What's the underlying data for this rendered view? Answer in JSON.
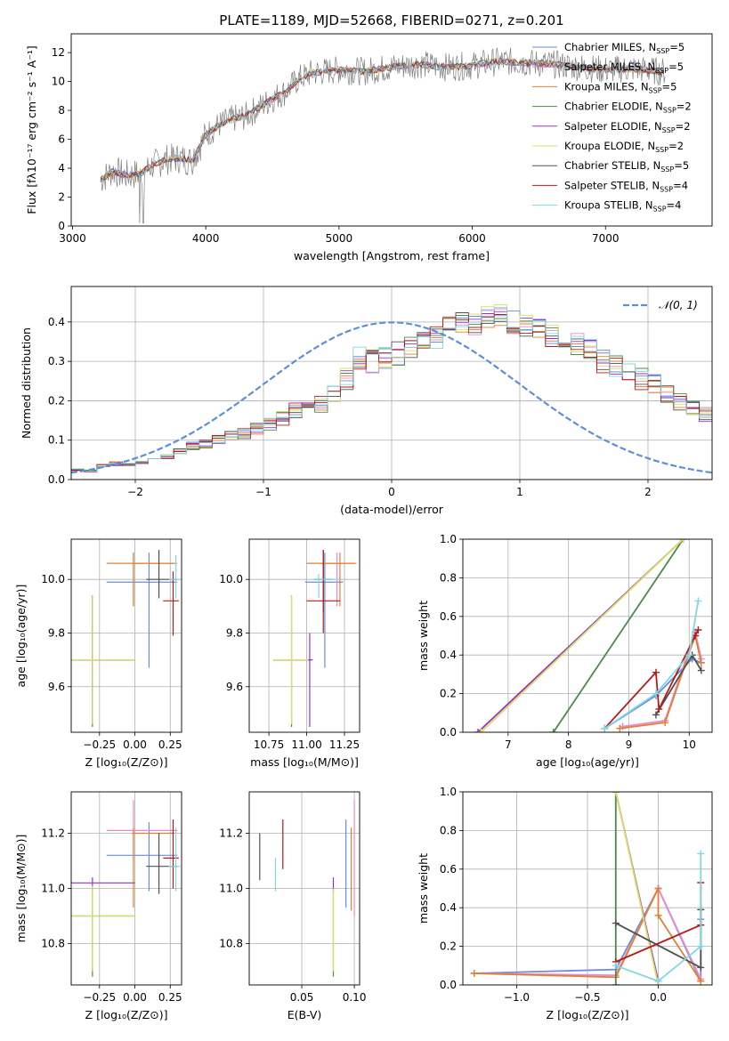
{
  "title": "PLATE=1189, MJD=52668, FIBERID=0271, z=0.201",
  "colors": {
    "Chabrier MILES": "#6a8be0",
    "Salpeter MILES": "#ee88cc",
    "Kroupa MILES": "#e08030",
    "Chabrier ELODIE": "#4a8a4a",
    "Salpeter ELODIE": "#9a30c8",
    "Kroupa ELODIE": "#d8e060",
    "Chabrier STELIB": "#505050",
    "Salpeter STELIB": "#b81818",
    "Kroupa STELIB": "#80d8e0",
    "gaussian": "#5b8fd8"
  },
  "chart_data": [
    {
      "id": "spectrum",
      "type": "line",
      "xlabel": "wavelength [Angstrom, rest frame]",
      "ylabel": "Flux [fλ10⁻¹⁷ erg cm⁻² s⁻¹ A⁻¹]",
      "xlim": [
        2990,
        7800
      ],
      "ylim": [
        0,
        13.3
      ],
      "xticks": [
        3000,
        4000,
        5000,
        6000,
        7000
      ],
      "yticks": [
        0,
        2,
        4,
        6,
        8,
        10,
        12
      ],
      "x": [
        3210,
        3300,
        3400,
        3500,
        3600,
        3700,
        3800,
        3900,
        4000,
        4100,
        4200,
        4300,
        4400,
        4500,
        4600,
        4700,
        4800,
        4900,
        5000,
        5200,
        5400,
        5600,
        5800,
        6000,
        6200,
        6400,
        6600,
        6800,
        7000,
        7200,
        7400
      ],
      "y": [
        3.2,
        3.8,
        3.5,
        3.6,
        4.2,
        4.6,
        4.7,
        4.5,
        6.3,
        7.0,
        7.4,
        7.6,
        8.2,
        8.8,
        9.3,
        10.2,
        10.6,
        10.7,
        10.8,
        10.7,
        11.0,
        11.2,
        11.0,
        11.1,
        11.4,
        11.3,
        11.2,
        11.0,
        10.8,
        10.9,
        10.7
      ],
      "legend": [
        {
          "label": "Chabrier MILES, N",
          "sub": "SSP",
          "tail": "=5"
        },
        {
          "label": "Salpeter MILES, N",
          "sub": "SSP",
          "tail": "=5"
        },
        {
          "label": "Kroupa MILES, N",
          "sub": "SSP",
          "tail": "=5"
        },
        {
          "label": "Chabrier ELODIE, N",
          "sub": "SSP",
          "tail": "=2"
        },
        {
          "label": "Salpeter ELODIE, N",
          "sub": "SSP",
          "tail": "=2"
        },
        {
          "label": "Kroupa ELODIE, N",
          "sub": "SSP",
          "tail": "=2"
        },
        {
          "label": "Chabrier STELIB, N",
          "sub": "SSP",
          "tail": "=5"
        },
        {
          "label": "Salpeter STELIB, N",
          "sub": "SSP",
          "tail": "=4"
        },
        {
          "label": "Kroupa STELIB, N",
          "sub": "SSP",
          "tail": "=4"
        }
      ]
    },
    {
      "id": "residuals",
      "type": "histogram",
      "xlabel": "(data-model)/error",
      "ylabel": "Normed distribution",
      "xlim": [
        -2.5,
        2.5
      ],
      "ylim": [
        0,
        0.49
      ],
      "xticks": [
        -2,
        -1,
        0,
        1,
        2
      ],
      "yticks": [
        0.0,
        0.1,
        0.2,
        0.3,
        0.4
      ],
      "bin_width": 0.1,
      "bin_start": -2.5,
      "values": [
        0.025,
        0.022,
        0.035,
        0.04,
        0.038,
        0.045,
        0.05,
        0.058,
        0.072,
        0.085,
        0.09,
        0.1,
        0.11,
        0.118,
        0.128,
        0.14,
        0.155,
        0.175,
        0.185,
        0.19,
        0.22,
        0.255,
        0.31,
        0.3,
        0.31,
        0.32,
        0.335,
        0.345,
        0.36,
        0.385,
        0.4,
        0.395,
        0.41,
        0.415,
        0.4,
        0.39,
        0.38,
        0.365,
        0.355,
        0.345,
        0.33,
        0.3,
        0.29,
        0.28,
        0.255,
        0.24,
        0.22,
        0.2,
        0.185,
        0.165,
        0.155,
        0.14,
        0.125,
        0.11,
        0.1,
        0.092,
        0.08,
        0.068,
        0.06,
        0.05,
        0.045,
        0.04,
        0.035,
        0.03,
        0.028,
        0.025,
        0.022,
        0.02,
        0.018,
        0.02,
        0.022,
        0.02,
        0.018,
        0.02,
        0.022,
        0.02,
        0.018,
        0.02,
        0.02,
        0.02
      ],
      "legend_label": "𝒩(0, 1)"
    },
    {
      "id": "age_vs_Z",
      "type": "errorbar",
      "xlabel": "Z [log₁₀(Z/Z⊙)]",
      "ylabel": "age  [log₁₀(age/yr)]",
      "xlim": [
        -0.45,
        0.33
      ],
      "ylim": [
        9.43,
        10.15
      ],
      "xticks": [
        -0.25,
        0.0,
        0.25
      ],
      "xticklabels": [
        "−0.25",
        "0.00",
        "0.25"
      ],
      "yticks": [
        9.6,
        9.8,
        10.0
      ],
      "points": [
        {
          "m": "Chabrier MILES",
          "x": 0.1,
          "y": 9.99,
          "xe": [
            -0.2,
            0.3
          ],
          "ye": [
            9.67,
            10.1
          ]
        },
        {
          "m": "Salpeter MILES",
          "x": -0.01,
          "y": 10.06,
          "xe": [
            -0.02,
            0.3
          ],
          "ye": [
            9.9,
            10.1
          ]
        },
        {
          "m": "Kroupa MILES",
          "x": -0.01,
          "y": 10.06,
          "xe": [
            -0.2,
            0.28
          ],
          "ye": [
            9.9,
            10.1
          ]
        },
        {
          "m": "Chabrier ELODIE",
          "x": -0.3,
          "y": 9.7,
          "xe": [
            -0.45,
            0.0
          ],
          "ye": [
            9.45,
            9.94
          ]
        },
        {
          "m": "Salpeter ELODIE",
          "x": -0.3,
          "y": 9.7,
          "xe": [
            -0.45,
            0.0
          ],
          "ye": [
            9.46,
            9.94
          ]
        },
        {
          "m": "Kroupa ELODIE",
          "x": -0.3,
          "y": 9.7,
          "xe": [
            -0.45,
            0.0
          ],
          "ye": [
            9.46,
            9.94
          ]
        },
        {
          "m": "Chabrier STELIB",
          "x": 0.17,
          "y": 10.0,
          "xe": [
            0.08,
            0.3
          ],
          "ye": [
            9.93,
            10.11
          ]
        },
        {
          "m": "Salpeter STELIB",
          "x": 0.27,
          "y": 9.92,
          "xe": [
            0.2,
            0.31
          ],
          "ye": [
            9.79,
            10.03
          ]
        },
        {
          "m": "Kroupa STELIB",
          "x": 0.29,
          "y": 10.0,
          "xe": [
            0.24,
            0.32
          ],
          "ye": [
            9.93,
            10.09
          ]
        }
      ]
    },
    {
      "id": "age_vs_mass",
      "type": "errorbar",
      "xlabel": "mass [log₁₀(M/M⊙)]",
      "ylabel": "",
      "xlim": [
        10.62,
        11.35
      ],
      "ylim": [
        9.43,
        10.15
      ],
      "xticks": [
        10.75,
        11.0,
        11.25
      ],
      "xticklabels": [
        "10.75",
        "11.00",
        "11.25"
      ],
      "yticks": [
        9.6,
        9.8,
        10.0
      ],
      "points": [
        {
          "m": "Chabrier MILES",
          "x": 11.12,
          "y": 9.99,
          "xe": [
            10.99,
            11.24
          ],
          "ye": [
            9.67,
            10.1
          ]
        },
        {
          "m": "Salpeter MILES",
          "x": 11.2,
          "y": 10.06,
          "xe": [
            11.1,
            11.33
          ],
          "ye": [
            9.9,
            10.1
          ]
        },
        {
          "m": "Kroupa MILES",
          "x": 11.22,
          "y": 10.06,
          "xe": [
            11.0,
            11.32
          ],
          "ye": [
            9.9,
            10.1
          ]
        },
        {
          "m": "Chabrier ELODIE",
          "x": 10.9,
          "y": 9.7,
          "xe": [
            10.78,
            11.01
          ],
          "ye": [
            9.45,
            9.94
          ]
        },
        {
          "m": "Salpeter ELODIE",
          "x": 11.02,
          "y": 9.7,
          "xe": [
            10.78,
            11.04
          ],
          "ye": [
            9.45,
            9.8
          ]
        },
        {
          "m": "Kroupa ELODIE",
          "x": 10.9,
          "y": 9.7,
          "xe": [
            10.78,
            11.01
          ],
          "ye": [
            9.46,
            9.94
          ]
        },
        {
          "m": "Chabrier STELIB",
          "x": 11.11,
          "y": 10.0,
          "xe": [
            11.05,
            11.17
          ],
          "ye": [
            9.88,
            10.11
          ]
        },
        {
          "m": "Salpeter STELIB",
          "x": 11.11,
          "y": 9.92,
          "xe": [
            11.0,
            11.22
          ],
          "ye": [
            9.8,
            10.11
          ]
        },
        {
          "m": "Kroupa STELIB",
          "x": 11.08,
          "y": 10.0,
          "xe": [
            11.04,
            11.22
          ],
          "ye": [
            9.93,
            10.02
          ]
        }
      ]
    },
    {
      "id": "weight_vs_age",
      "type": "line",
      "xlabel": "age  [log₁₀(age/yr)]",
      "ylabel": "mass weight",
      "xlim": [
        6.25,
        10.38
      ],
      "ylim": [
        0,
        1.0
      ],
      "xticks": [
        7,
        8,
        9,
        10
      ],
      "yticks": [
        0.0,
        0.2,
        0.4,
        0.6,
        0.8,
        1.0
      ],
      "series": [
        {
          "m": "Chabrier MILES",
          "x": [
            8.6,
            9.45,
            10.05,
            10.2
          ],
          "y": [
            0.02,
            0.19,
            0.38,
            0.36
          ]
        },
        {
          "m": "Salpeter MILES",
          "x": [
            8.9,
            9.6,
            10.1,
            10.2
          ],
          "y": [
            0.03,
            0.06,
            0.52,
            0.38
          ]
        },
        {
          "m": "Kroupa MILES",
          "x": [
            8.85,
            9.6,
            10.1,
            10.2
          ],
          "y": [
            0.02,
            0.05,
            0.5,
            0.36
          ]
        },
        {
          "m": "Chabrier ELODIE",
          "x": [
            7.75,
            9.9
          ],
          "y": [
            0.0,
            1.0
          ]
        },
        {
          "m": "Salpeter ELODIE",
          "x": [
            6.5,
            9.9
          ],
          "y": [
            0.0,
            1.0
          ]
        },
        {
          "m": "Kroupa ELODIE",
          "x": [
            6.55,
            9.9
          ],
          "y": [
            0.0,
            1.0
          ]
        },
        {
          "m": "Chabrier STELIB",
          "x": [
            9.45,
            10.05,
            10.2
          ],
          "y": [
            0.09,
            0.4,
            0.32
          ]
        },
        {
          "m": "Salpeter STELIB",
          "x": [
            8.6,
            9.45,
            9.5,
            10.1,
            10.15
          ],
          "y": [
            0.02,
            0.31,
            0.12,
            0.5,
            0.53
          ]
        },
        {
          "m": "Kroupa STELIB",
          "x": [
            8.6,
            9.45,
            10.0,
            10.15
          ],
          "y": [
            0.02,
            0.2,
            0.4,
            0.68
          ]
        }
      ]
    },
    {
      "id": "mass_vs_Z",
      "type": "errorbar",
      "xlabel": "Z [log₁₀(Z/Z⊙)]",
      "ylabel": "mass [log₁₀(M/M⊙)]",
      "xlim": [
        -0.45,
        0.33
      ],
      "ylim": [
        10.65,
        11.35
      ],
      "xticks": [
        -0.25,
        0.0,
        0.25
      ],
      "xticklabels": [
        "−0.25",
        "0.00",
        "0.25"
      ],
      "yticks": [
        10.8,
        11.0,
        11.2
      ],
      "points": [
        {
          "m": "Chabrier MILES",
          "x": 0.1,
          "y": 11.12,
          "xe": [
            -0.2,
            0.3
          ],
          "ye": [
            10.99,
            11.24
          ]
        },
        {
          "m": "Salpeter MILES",
          "x": -0.01,
          "y": 11.21,
          "xe": [
            -0.2,
            0.3
          ],
          "ye": [
            11.1,
            11.32
          ]
        },
        {
          "m": "Kroupa MILES",
          "x": -0.01,
          "y": 11.2,
          "xe": [
            -0.02,
            0.28
          ],
          "ye": [
            10.93,
            11.22
          ]
        },
        {
          "m": "Chabrier ELODIE",
          "x": -0.3,
          "y": 10.9,
          "xe": [
            -0.45,
            0.0
          ],
          "ye": [
            10.68,
            11.01
          ]
        },
        {
          "m": "Salpeter ELODIE",
          "x": -0.3,
          "y": 11.02,
          "xe": [
            -0.45,
            0.0
          ],
          "ye": [
            11.0,
            11.04
          ]
        },
        {
          "m": "Kroupa ELODIE",
          "x": -0.3,
          "y": 10.9,
          "xe": [
            -0.45,
            0.0
          ],
          "ye": [
            10.7,
            11.01
          ]
        },
        {
          "m": "Chabrier STELIB",
          "x": 0.17,
          "y": 11.08,
          "xe": [
            0.08,
            0.3
          ],
          "ye": [
            10.98,
            11.2
          ]
        },
        {
          "m": "Salpeter STELIB",
          "x": 0.27,
          "y": 11.11,
          "xe": [
            0.2,
            0.31
          ],
          "ye": [
            11.0,
            11.25
          ]
        },
        {
          "m": "Kroupa STELIB",
          "x": 0.29,
          "y": 11.08,
          "xe": [
            0.24,
            0.32
          ],
          "ye": [
            10.99,
            11.22
          ]
        }
      ]
    },
    {
      "id": "mass_vs_EBV",
      "type": "errorbar",
      "xlabel": "E(B-V)",
      "ylabel": "",
      "xlim": [
        0.0,
        0.105
      ],
      "ylim": [
        10.65,
        11.35
      ],
      "xticks": [
        0.05,
        0.1
      ],
      "xticklabels": [
        "0.05",
        "0.10"
      ],
      "yticks": [
        10.8,
        11.0,
        11.2
      ],
      "points": [
        {
          "m": "Chabrier MILES",
          "x": 0.092,
          "y": 11.12,
          "xe": [
            0.092,
            0.092
          ],
          "ye": [
            10.93,
            11.25
          ]
        },
        {
          "m": "Salpeter MILES",
          "x": 0.1,
          "y": 11.21,
          "xe": [
            0.1,
            0.1
          ],
          "ye": [
            10.9,
            11.32
          ]
        },
        {
          "m": "Kroupa MILES",
          "x": 0.097,
          "y": 11.2,
          "xe": [
            0.097,
            0.097
          ],
          "ye": [
            10.92,
            11.22
          ]
        },
        {
          "m": "Chabrier ELODIE",
          "x": 0.08,
          "y": 10.9,
          "xe": [
            0.08,
            0.08
          ],
          "ye": [
            10.68,
            11.0
          ]
        },
        {
          "m": "Salpeter ELODIE",
          "x": 0.08,
          "y": 11.02,
          "xe": [
            0.08,
            0.08
          ],
          "ye": [
            10.99,
            11.04
          ]
        },
        {
          "m": "Kroupa ELODIE",
          "x": 0.08,
          "y": 10.9,
          "xe": [
            0.08,
            0.08
          ],
          "ye": [
            10.7,
            11.0
          ]
        },
        {
          "m": "Chabrier STELIB",
          "x": 0.01,
          "y": 11.1,
          "xe": [
            0.01,
            0.01
          ],
          "ye": [
            11.03,
            11.2
          ]
        },
        {
          "m": "Salpeter STELIB",
          "x": 0.032,
          "y": 11.15,
          "xe": [
            0.032,
            0.032
          ],
          "ye": [
            11.07,
            11.25
          ]
        },
        {
          "m": "Kroupa STELIB",
          "x": 0.025,
          "y": 11.05,
          "xe": [
            0.025,
            0.025
          ],
          "ye": [
            10.99,
            11.11
          ]
        }
      ]
    },
    {
      "id": "weight_vs_Z",
      "type": "line",
      "xlabel": "Z [log₁₀(Z/Z⊙)]",
      "ylabel": "mass weight",
      "xlim": [
        -1.38,
        0.38
      ],
      "ylim": [
        0,
        1.0
      ],
      "xticks": [
        -1.0,
        -0.5,
        0.0
      ],
      "xticklabels": [
        "−1.0",
        "−0.5",
        "0.0"
      ],
      "yticks": [
        0.0,
        0.2,
        0.4,
        0.6,
        0.8,
        1.0
      ],
      "series": [
        {
          "m": "Chabrier MILES",
          "x": [
            -1.3,
            -0.3,
            0.0,
            0.3,
            0.3
          ],
          "y": [
            0.06,
            0.08,
            0.5,
            0.02,
            0.34
          ]
        },
        {
          "m": "Salpeter MILES",
          "x": [
            -1.3,
            -0.3,
            0.0,
            0.3
          ],
          "y": [
            0.06,
            0.05,
            0.5,
            0.03
          ]
        },
        {
          "m": "Kroupa MILES",
          "x": [
            -1.3,
            -0.3,
            0.0,
            0.0,
            0.3
          ],
          "y": [
            0.06,
            0.04,
            0.5,
            0.36,
            0.02
          ]
        },
        {
          "m": "Chabrier ELODIE",
          "x": [
            -0.3,
            -0.3
          ],
          "y": [
            0.0,
            1.0
          ]
        },
        {
          "m": "Salpeter ELODIE",
          "x": [
            -0.3,
            0.0
          ],
          "y": [
            1.0,
            0.02
          ]
        },
        {
          "m": "Kroupa ELODIE",
          "x": [
            -0.3,
            0.0
          ],
          "y": [
            1.0,
            0.0
          ]
        },
        {
          "m": "Chabrier STELIB",
          "x": [
            -0.3,
            0.3,
            0.3
          ],
          "y": [
            0.32,
            0.09,
            0.39
          ]
        },
        {
          "m": "Salpeter STELIB",
          "x": [
            -0.3,
            0.3,
            0.3
          ],
          "y": [
            0.12,
            0.31,
            0.53
          ]
        },
        {
          "m": "Kroupa STELIB",
          "x": [
            -0.3,
            0.0,
            0.3,
            0.3
          ],
          "y": [
            0.1,
            0.02,
            0.2,
            0.68
          ]
        }
      ]
    }
  ]
}
